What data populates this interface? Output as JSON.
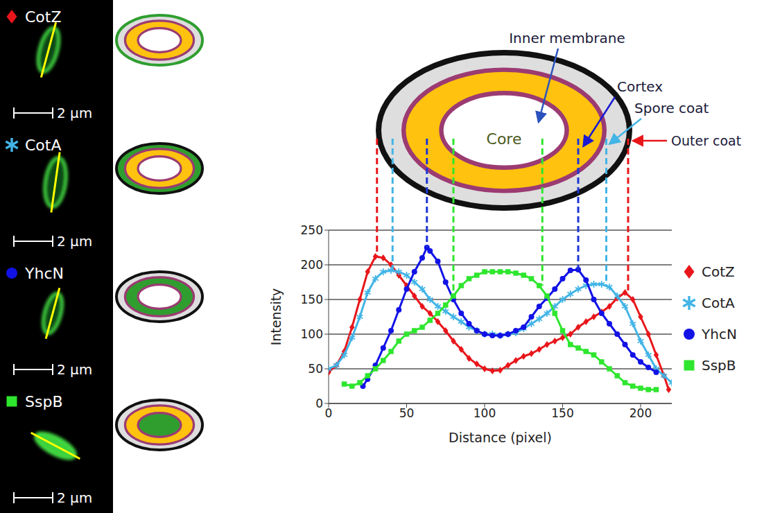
{
  "panels": [
    {
      "protein": "CotZ",
      "marker": "diamond",
      "color": "#e8161b",
      "scale_bar": "2 µm",
      "highlight": "Outer coat"
    },
    {
      "protein": "CotA",
      "marker": "asterisk",
      "color": "#42b4e6",
      "scale_bar": "2 µm",
      "highlight": "Spore coat"
    },
    {
      "protein": "YhcN",
      "marker": "circle",
      "color": "#1212e6",
      "scale_bar": "2 µm",
      "highlight": "Cortex"
    },
    {
      "protein": "SspB",
      "marker": "square",
      "color": "#2ee62e",
      "scale_bar": "2 µm",
      "highlight": "Core"
    }
  ],
  "diagram": {
    "core": "Core",
    "labels": [
      {
        "text": "Inner membrane",
        "color": "#2a52be"
      },
      {
        "text": "Cortex",
        "color": "#1a1ad0"
      },
      {
        "text": "Spore coat",
        "color": "#42b4e6"
      },
      {
        "text": "Outer coat",
        "color": "#e8161b"
      }
    ]
  },
  "chart_data": {
    "type": "scatter",
    "x_label": "Distance (pixel)",
    "y_label": "Intensity",
    "xlim": [
      0,
      220
    ],
    "xticks": [
      0,
      50,
      100,
      150,
      200
    ],
    "ylim": [
      0,
      250
    ],
    "yticks": [
      0,
      50,
      100,
      150,
      200,
      250
    ],
    "grid": true,
    "legend": "right",
    "series": [
      {
        "name": "CotZ",
        "color": "#e8161b",
        "marker": "diamond",
        "x": [
          0,
          5,
          10,
          15,
          20,
          25,
          30,
          35,
          40,
          45,
          50,
          55,
          60,
          65,
          70,
          75,
          80,
          85,
          90,
          95,
          100,
          105,
          110,
          115,
          120,
          125,
          130,
          135,
          140,
          145,
          150,
          155,
          160,
          165,
          170,
          175,
          180,
          185,
          190,
          195,
          200,
          205,
          210,
          215,
          218
        ],
        "values": [
          45,
          55,
          75,
          110,
          150,
          190,
          212,
          210,
          200,
          185,
          170,
          155,
          140,
          130,
          118,
          105,
          90,
          78,
          65,
          57,
          50,
          47,
          48,
          55,
          62,
          68,
          72,
          78,
          85,
          90,
          95,
          100,
          110,
          118,
          125,
          132,
          140,
          152,
          160,
          150,
          125,
          100,
          70,
          40,
          20
        ]
      },
      {
        "name": "CotA",
        "color": "#42b4e6",
        "marker": "asterisk",
        "x": [
          0,
          5,
          10,
          15,
          20,
          25,
          30,
          35,
          40,
          45,
          50,
          55,
          60,
          65,
          70,
          75,
          80,
          85,
          90,
          95,
          100,
          105,
          110,
          115,
          120,
          125,
          130,
          135,
          140,
          145,
          150,
          155,
          160,
          165,
          170,
          175,
          180,
          185,
          190,
          195,
          200,
          205,
          210,
          215,
          220
        ],
        "values": [
          50,
          55,
          70,
          95,
          125,
          160,
          180,
          190,
          192,
          190,
          185,
          175,
          165,
          150,
          140,
          133,
          125,
          118,
          110,
          105,
          100,
          100,
          98,
          100,
          102,
          108,
          115,
          122,
          130,
          140,
          150,
          158,
          165,
          170,
          172,
          172,
          168,
          155,
          140,
          115,
          90,
          70,
          50,
          40,
          30
        ]
      },
      {
        "name": "YhcN",
        "color": "#1212e6",
        "marker": "circle",
        "x": [
          22,
          25,
          30,
          35,
          40,
          45,
          50,
          55,
          60,
          63,
          65,
          70,
          75,
          80,
          85,
          90,
          95,
          100,
          105,
          110,
          115,
          120,
          125,
          130,
          135,
          140,
          145,
          150,
          155,
          160,
          165,
          170,
          175,
          180,
          185,
          190,
          195,
          200,
          205,
          210
        ],
        "values": [
          25,
          35,
          55,
          80,
          105,
          135,
          165,
          190,
          210,
          225,
          220,
          205,
          175,
          150,
          130,
          115,
          105,
          100,
          98,
          98,
          100,
          105,
          110,
          125,
          140,
          152,
          165,
          180,
          192,
          193,
          178,
          150,
          130,
          115,
          100,
          85,
          70,
          60,
          52,
          45
        ]
      },
      {
        "name": "SspB",
        "color": "#2ee62e",
        "marker": "square",
        "x": [
          10,
          15,
          20,
          25,
          30,
          35,
          40,
          45,
          50,
          55,
          60,
          65,
          70,
          75,
          80,
          85,
          90,
          95,
          100,
          105,
          110,
          115,
          120,
          125,
          130,
          135,
          140,
          145,
          150,
          155,
          160,
          165,
          170,
          175,
          180,
          185,
          190,
          195,
          200,
          205,
          210
        ],
        "values": [
          28,
          25,
          30,
          40,
          50,
          62,
          75,
          90,
          100,
          105,
          110,
          120,
          130,
          142,
          155,
          170,
          180,
          185,
          190,
          190,
          190,
          190,
          188,
          185,
          180,
          170,
          155,
          130,
          105,
          85,
          80,
          75,
          70,
          60,
          50,
          40,
          30,
          25,
          22,
          20,
          20
        ]
      }
    ],
    "boundaries": [
      {
        "color": "#e8161b",
        "x": [
          31,
          192
        ]
      },
      {
        "color": "#42b4e6",
        "x": [
          41,
          178
        ]
      },
      {
        "color": "#1d35d6",
        "x": [
          63,
          160
        ]
      },
      {
        "color": "#2ee62e",
        "x": [
          80,
          137
        ]
      }
    ]
  }
}
